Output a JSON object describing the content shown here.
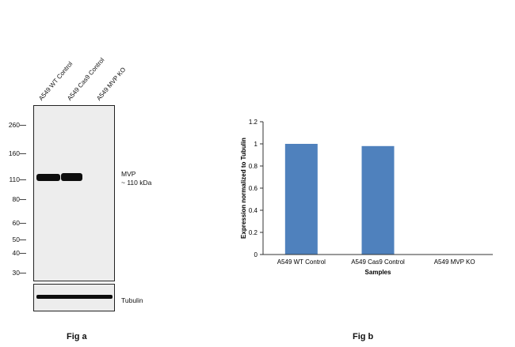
{
  "fig_a": {
    "lane_labels": [
      "A549 WT Control",
      "A549 Cas9 Control",
      "A549 MVP KO"
    ],
    "mw_markers": [
      "260",
      "160",
      "110",
      "80",
      "60",
      "50",
      "40",
      "30"
    ],
    "target_name": "MVP",
    "target_size": "~ 110 kDa",
    "loading_control": "Tubulin",
    "caption": "Fig a"
  },
  "fig_b": {
    "caption": "Fig b"
  },
  "chart_data": {
    "type": "bar",
    "categories": [
      "A549 WT Control",
      "A549 Cas9 Control",
      "A549 MVP KO"
    ],
    "values": [
      1.0,
      0.98,
      0
    ],
    "title": "",
    "xlabel": "Samples",
    "ylabel": "Expression  normalized to Tubulin",
    "ylim": [
      0,
      1.2
    ],
    "yticks": [
      "0",
      "0.2",
      "0.4",
      "0.6",
      "0.8",
      "1",
      "1.2"
    ],
    "ytick_values": [
      0,
      0.2,
      0.4,
      0.6,
      0.8,
      1.0,
      1.2
    ],
    "bar_color": "#4f81bd",
    "grid": false,
    "legend": "none"
  }
}
